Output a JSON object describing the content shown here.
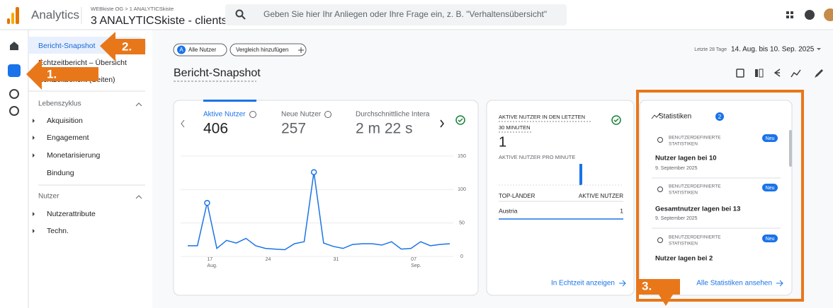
{
  "header": {
    "app": "Analytics",
    "breadcrumb": "WEBkiste OG > 1 ANALYTICSkiste",
    "property": "3 ANALYTICSkiste - clientside",
    "search_placeholder": "Geben Sie hier Ihr Anliegen oder Ihre Frage ein, z. B. \"Verhaltensübersicht\""
  },
  "sidebar": {
    "top_items": [
      "Bericht-Snapshot",
      "Echtzeitbericht – Übersicht",
      "Echtzeitbericht (Seiten)"
    ],
    "sections": [
      {
        "title": "Lebenszyklus",
        "items": [
          "Akquisition",
          "Engagement",
          "Monetarisierung",
          "Bindung"
        ]
      },
      {
        "title": "Nutzer",
        "items": [
          "Nutzerattribute",
          "Techn."
        ]
      }
    ]
  },
  "toolbar": {
    "segment_avatar": "A",
    "segment": "Alle Nutzer",
    "compare": "Vergleich hinzufügen",
    "range_label": "Letzte 28 Tage",
    "range": "14. Aug. bis 10. Sep. 2025"
  },
  "page_title": "Bericht-Snapshot",
  "metrics": [
    {
      "label": "Aktive Nutzer",
      "value": 406
    },
    {
      "label": "Neue Nutzer",
      "value": 257
    },
    {
      "label": "Durchschnittliche Intera",
      "value": "2 m 22 s"
    }
  ],
  "line_chart": {
    "type": "line",
    "color": "#1a73e8",
    "categories": [
      null,
      null,
      "17",
      null,
      null,
      null,
      null,
      null,
      "24",
      null,
      null,
      null,
      null,
      null,
      null,
      "31",
      null,
      null,
      null,
      null,
      null,
      null,
      null,
      "07",
      null,
      null,
      null,
      null
    ],
    "sublabels": [
      null,
      null,
      "Aug.",
      null,
      null,
      null,
      null,
      null,
      null,
      null,
      null,
      null,
      null,
      null,
      null,
      null,
      null,
      null,
      null,
      null,
      null,
      null,
      null,
      "Sep.",
      null,
      null,
      null,
      null
    ],
    "values": [
      16,
      16,
      80,
      12,
      24,
      20,
      27,
      16,
      12,
      11,
      10,
      19,
      22,
      126,
      20,
      15,
      12,
      18,
      19,
      19,
      17,
      22,
      11,
      12,
      22,
      16,
      18,
      19
    ],
    "ylim": [
      0,
      150
    ],
    "yticks": [
      0,
      50,
      100,
      150
    ]
  },
  "realtime": {
    "title_lines": [
      "AKTIVE NUTZER IN DEN LETZTEN",
      "30 MINUTEN"
    ],
    "value": 1,
    "per_minute": "AKTIVE NUTZER PRO MINUTE",
    "table": {
      "headers": [
        "TOP-LÄNDER",
        "AKTIVE NUTZER"
      ],
      "rows": [
        [
          "Austria",
          1
        ]
      ]
    },
    "link": "In Echtzeit anzeigen"
  },
  "insights": {
    "title": "Statistiken",
    "count": 2,
    "items": [
      {
        "type_lines": [
          "BENUTZERDEFINIERTE",
          "STATISTIKEN"
        ],
        "badge": "Neu",
        "title": "Nutzer lagen bei 10",
        "date": "9. September 2025"
      },
      {
        "type_lines": [
          "BENUTZERDEFINIERTE",
          "STATISTIKEN"
        ],
        "badge": "Neu",
        "title": "Gesamtnutzer lagen bei 13",
        "date": "9. September 2025"
      },
      {
        "type_lines": [
          "BENUTZERDEFINIERTE",
          "STATISTIKEN"
        ],
        "badge": "Neu",
        "title": "Nutzer lagen bei 2"
      }
    ],
    "link": "Alle Statistiken ansehen"
  },
  "annotations": [
    "1.",
    "2.",
    "3."
  ]
}
